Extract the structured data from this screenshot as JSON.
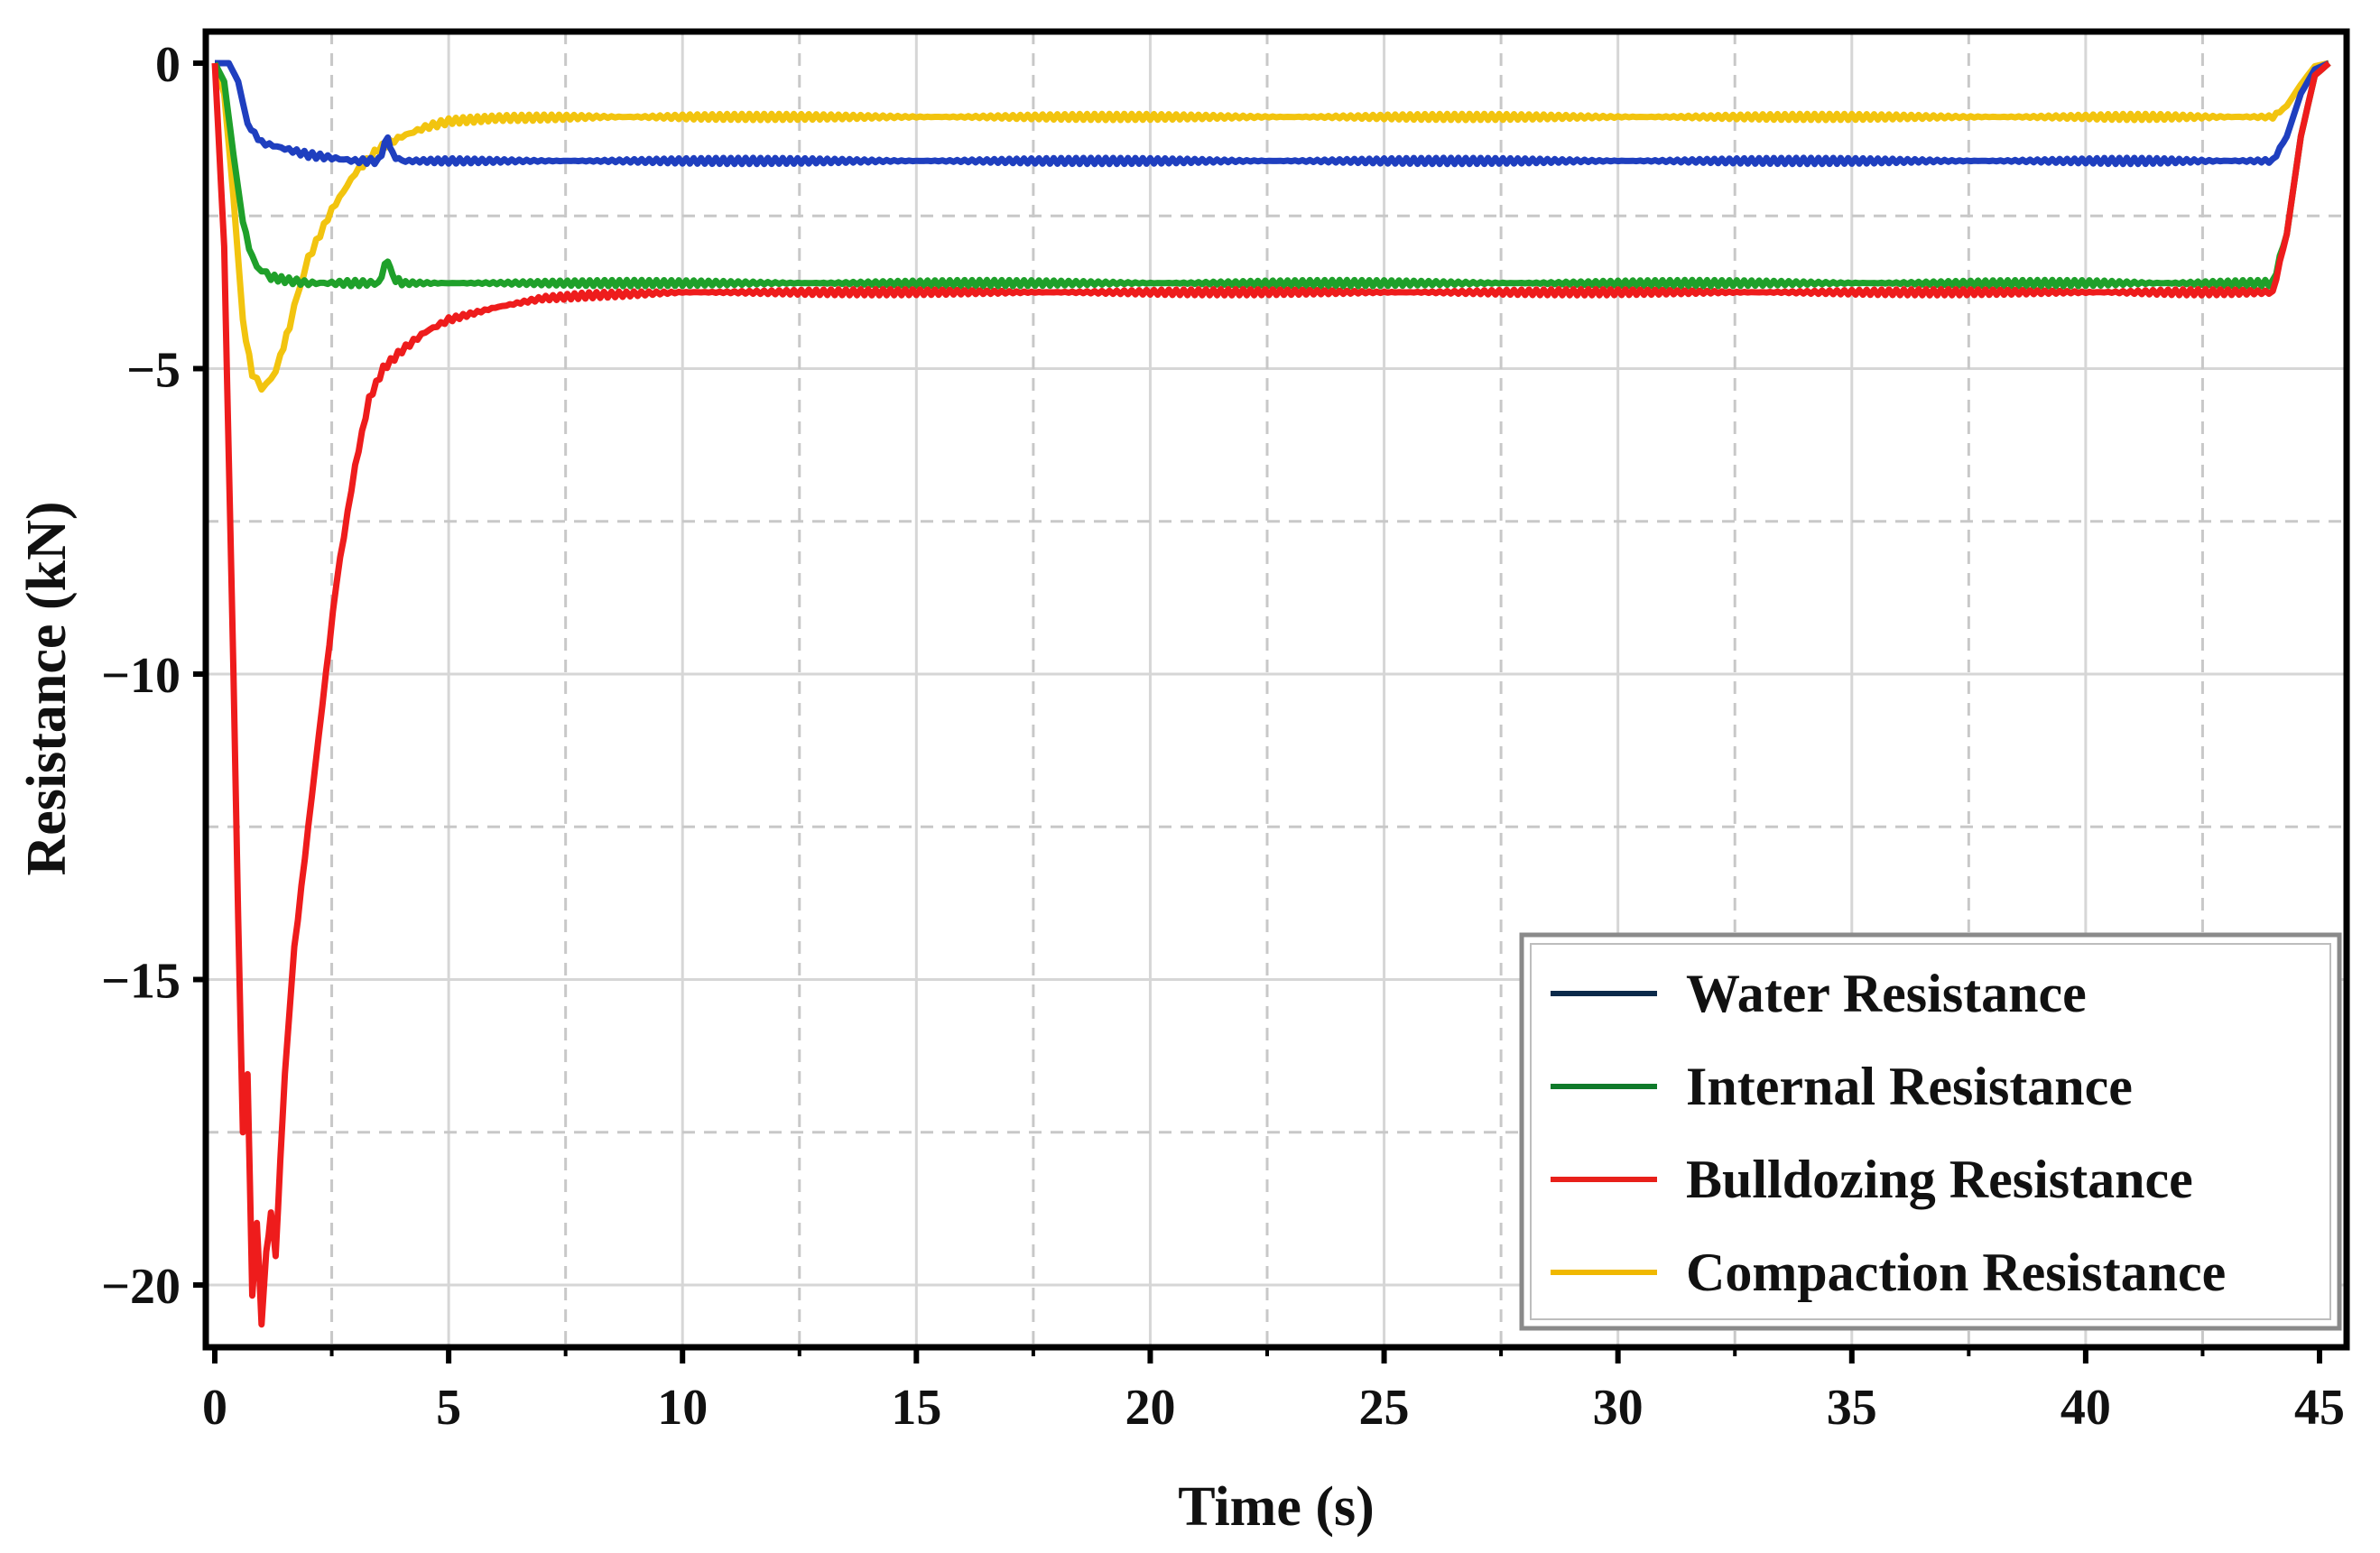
{
  "chart_data": {
    "type": "line",
    "title": "",
    "xlabel": "Time (s)",
    "ylabel": "Resistance (kN)",
    "xlim": [
      0,
      45
    ],
    "ylim": [
      -21,
      0.5
    ],
    "xticks": [
      {
        "value": 0,
        "label": "0"
      },
      {
        "value": 5,
        "label": "5"
      },
      {
        "value": 10,
        "label": "10"
      },
      {
        "value": 15,
        "label": "15"
      },
      {
        "value": 20,
        "label": "20"
      },
      {
        "value": 25,
        "label": "25"
      },
      {
        "value": 30,
        "label": "30"
      },
      {
        "value": 35,
        "label": "35"
      },
      {
        "value": 40,
        "label": "40"
      },
      {
        "value": 45,
        "label": "45"
      }
    ],
    "yticks": [
      {
        "value": 0,
        "label": "0"
      },
      {
        "value": -5,
        "label": "−5"
      },
      {
        "value": -10,
        "label": "−10"
      },
      {
        "value": -15,
        "label": "−15"
      },
      {
        "value": -20,
        "label": "−20"
      }
    ],
    "minor_x": [
      2.5,
      7.5,
      12.5,
      17.5,
      22.5,
      27.5,
      32.5,
      37.5,
      42.5
    ],
    "minor_y": [
      -2.5,
      -7.5,
      -12.5,
      -17.5
    ],
    "grid": true,
    "legend_position": "bottom-right",
    "series": [
      {
        "name": "Water Resistance",
        "color": "#1f3fbf",
        "legend_color": "#0b2a4a",
        "x": [
          0,
          0.3,
          0.5,
          0.7,
          1.0,
          1.5,
          2.0,
          2.5,
          3.0,
          3.5,
          3.7,
          3.8,
          4.0,
          5,
          10,
          15,
          20,
          25,
          30,
          35,
          40,
          44.0,
          44.3,
          44.6,
          44.9,
          45.2
        ],
        "y": [
          0,
          0,
          -0.3,
          -1.0,
          -1.3,
          -1.4,
          -1.5,
          -1.55,
          -1.6,
          -1.6,
          -1.2,
          -1.5,
          -1.6,
          -1.6,
          -1.6,
          -1.6,
          -1.6,
          -1.6,
          -1.6,
          -1.6,
          -1.6,
          -1.6,
          -1.2,
          -0.5,
          -0.1,
          0
        ]
      },
      {
        "name": "Internal Resistance",
        "color": "#1fa02a",
        "legend_color": "#0f7a2a",
        "x": [
          0,
          0.2,
          0.4,
          0.6,
          0.8,
          1.0,
          1.2,
          1.5,
          2.0,
          2.5,
          3.0,
          3.5,
          3.7,
          3.8,
          4.0,
          5,
          10,
          15,
          20,
          25,
          30,
          35,
          40,
          44.0,
          44.3,
          44.6,
          44.9,
          45.2
        ],
        "y": [
          0,
          -0.3,
          -1.5,
          -2.6,
          -3.2,
          -3.4,
          -3.5,
          -3.55,
          -3.6,
          -3.6,
          -3.6,
          -3.6,
          -3.2,
          -3.5,
          -3.6,
          -3.6,
          -3.6,
          -3.6,
          -3.6,
          -3.6,
          -3.6,
          -3.6,
          -3.6,
          -3.6,
          -2.8,
          -1.2,
          -0.2,
          0
        ]
      },
      {
        "name": "Bulldozing Resistance",
        "color": "#ee1c1c",
        "legend_color": "#e8201a",
        "x": [
          0,
          0.2,
          0.4,
          0.5,
          0.6,
          0.7,
          0.8,
          0.9,
          1.0,
          1.1,
          1.2,
          1.3,
          1.4,
          1.5,
          1.7,
          2.0,
          2.3,
          2.6,
          3.0,
          3.3,
          3.6,
          4.0,
          4.5,
          5.0,
          6,
          7,
          8,
          10,
          15,
          20,
          25,
          30,
          35,
          40,
          44.0,
          44.3,
          44.6,
          44.9,
          45.2
        ],
        "y": [
          0,
          -3,
          -10,
          -14,
          -17.5,
          -16.5,
          -20.2,
          -19.0,
          -20.6,
          -19.5,
          -18.8,
          -19.5,
          -18.0,
          -16.5,
          -14.5,
          -12.5,
          -10.5,
          -8.5,
          -6.6,
          -5.5,
          -5.0,
          -4.7,
          -4.4,
          -4.2,
          -4.0,
          -3.85,
          -3.8,
          -3.75,
          -3.75,
          -3.75,
          -3.75,
          -3.75,
          -3.75,
          -3.75,
          -3.75,
          -2.8,
          -1.2,
          -0.2,
          0
        ]
      },
      {
        "name": "Compaction Resistance",
        "color": "#f2c40f",
        "legend_color": "#f0b800",
        "x": [
          0,
          0.2,
          0.4,
          0.6,
          0.8,
          1.0,
          1.2,
          1.4,
          1.6,
          1.8,
          2.0,
          2.5,
          3.0,
          3.5,
          4.0,
          4.5,
          5,
          6,
          8,
          10,
          15,
          20,
          25,
          30,
          35,
          40,
          44.0,
          44.3,
          44.6,
          44.9,
          45.2
        ],
        "y": [
          0,
          -0.5,
          -2.2,
          -4.2,
          -5.1,
          -5.3,
          -5.2,
          -4.8,
          -4.3,
          -3.7,
          -3.2,
          -2.4,
          -1.8,
          -1.4,
          -1.2,
          -1.05,
          -0.95,
          -0.9,
          -0.88,
          -0.88,
          -0.88,
          -0.88,
          -0.88,
          -0.88,
          -0.88,
          -0.88,
          -0.88,
          -0.7,
          -0.35,
          -0.05,
          0
        ]
      }
    ]
  }
}
